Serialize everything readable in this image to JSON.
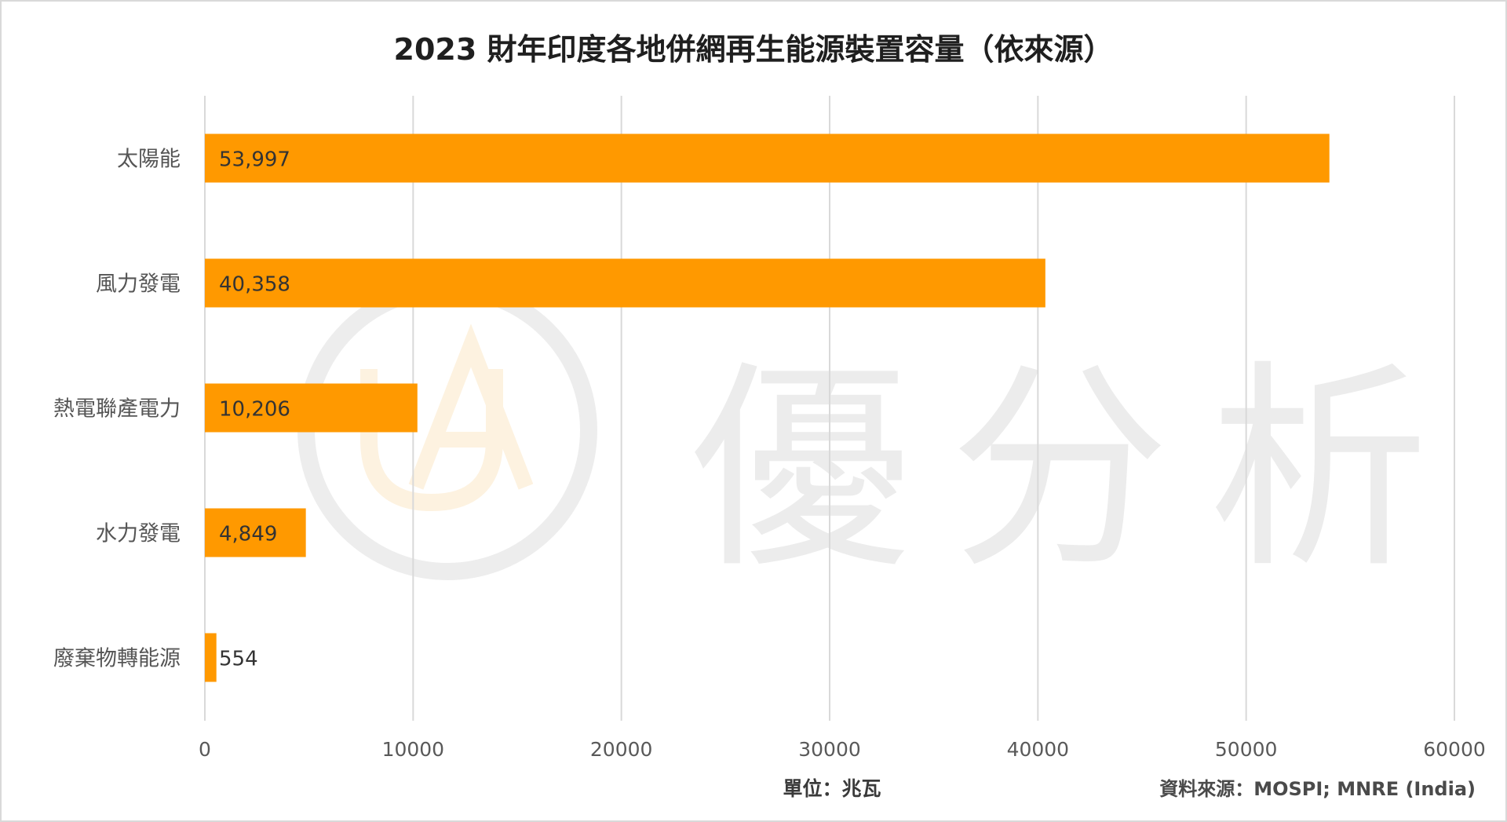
{
  "watermark": {
    "text": "優分析",
    "logo_colors": [
      "#ededed",
      "#fdf2e0"
    ]
  },
  "chart_data": {
    "type": "bar",
    "orientation": "horizontal",
    "title": "2023 財年印度各地併網再生能源裝置容量（依來源）",
    "categories": [
      "太陽能",
      "風力發電",
      "熱電聯產電力",
      "水力發電",
      "廢棄物轉能源"
    ],
    "values": [
      53997,
      40358,
      10206,
      4849,
      554
    ],
    "value_labels": [
      "53,997",
      "40,358",
      "10,206",
      "4,849",
      "554"
    ],
    "xlim": [
      0,
      60000
    ],
    "xticks": [
      "0",
      "10000",
      "20000",
      "30000",
      "40000",
      "50000",
      "60000"
    ],
    "xtick_values": [
      0,
      10000,
      20000,
      30000,
      40000,
      50000,
      60000
    ],
    "xlabel": "單位：兆瓦",
    "source": "資料來源：MOSPI; MNRE (India)",
    "bar_color": "#ff9900",
    "gridlines": true,
    "legend": "none"
  }
}
